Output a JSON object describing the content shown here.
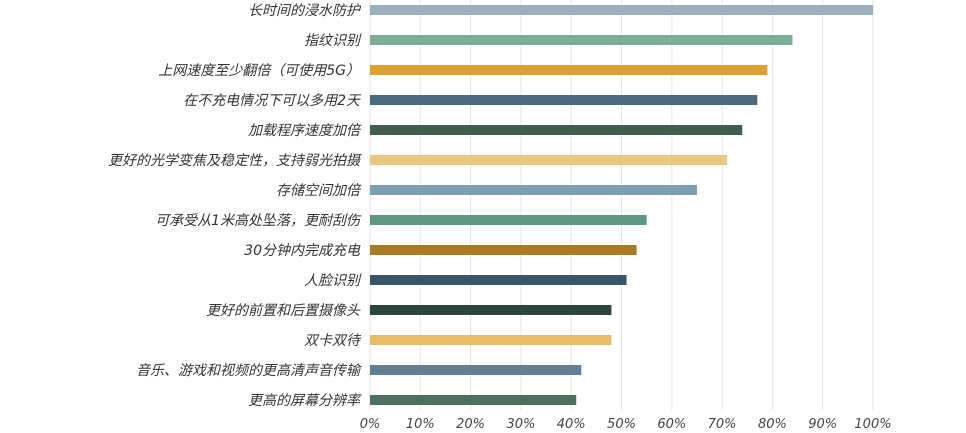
{
  "chart_data": {
    "type": "bar",
    "orientation": "horizontal",
    "categories": [
      "长时间的浸水防护",
      "指纹识别",
      "上网速度至少翻倍（可使用5G）",
      "在不充电情况下可以多用2天",
      "加载程序速度加倍",
      "更好的光学变焦及稳定性，支持弱光拍摄",
      "存储空间加倍",
      "可承受从1米高处坠落，更耐刮伤",
      "30分钟内完成充电",
      "人脸识别",
      "更好的前置和后置摄像头",
      "双卡双待",
      "音乐、游戏和视频的更高清声音传输",
      "更高的屏幕分辨率"
    ],
    "values": [
      100,
      84,
      79,
      77,
      74,
      71,
      65,
      55,
      53,
      51,
      48,
      48,
      42,
      41
    ],
    "colors": [
      "#9ab0bf",
      "#7daf96",
      "#dca12e",
      "#4a6a80",
      "#3f5e50",
      "#e9c882",
      "#7d9db0",
      "#5e9680",
      "#a87c22",
      "#3a5566",
      "#2c453b",
      "#e8bb66",
      "#607f97",
      "#4b705f"
    ],
    "highlight_color": "#cc0000",
    "highlight_index": 0,
    "xlim": [
      0,
      100
    ],
    "x_ticks": [
      "0%",
      "10%",
      "20%",
      "30%",
      "40%",
      "50%",
      "60%",
      "70%",
      "80%",
      "90%",
      "100%"
    ],
    "grid": true
  }
}
